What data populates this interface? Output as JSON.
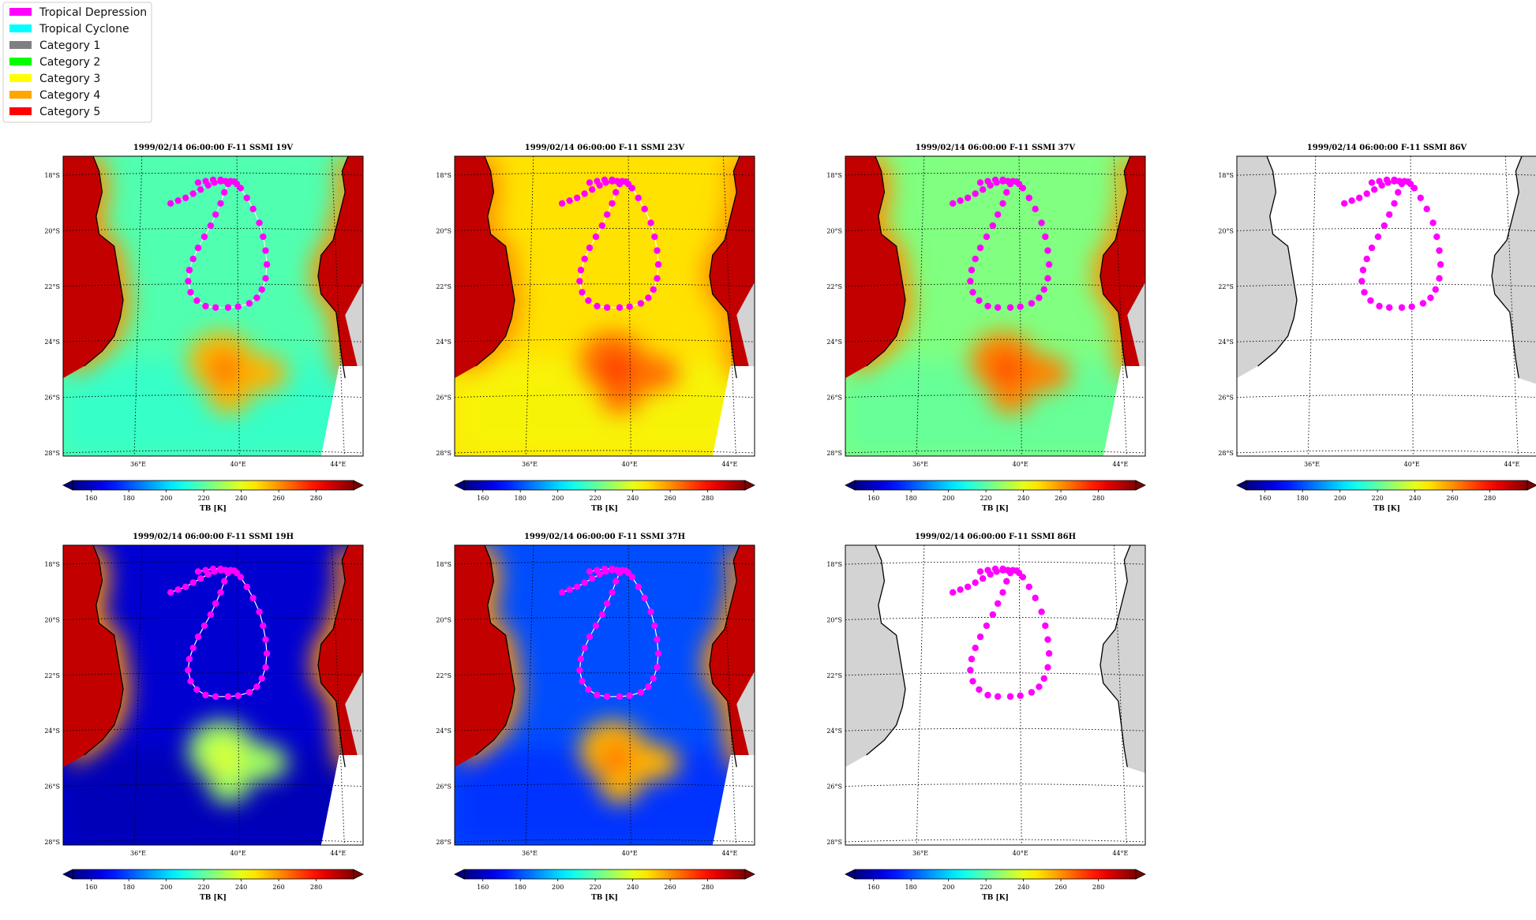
{
  "legend": {
    "position": "top-left",
    "items": [
      {
        "label": "Tropical Depression",
        "color": "#ff00ff"
      },
      {
        "label": "Tropical Cyclone",
        "color": "#00ffff"
      },
      {
        "label": "Category 1",
        "color": "#808080"
      },
      {
        "label": "Category 2",
        "color": "#00ff00"
      },
      {
        "label": "Category 3",
        "color": "#ffff00"
      },
      {
        "label": "Category 4",
        "color": "#ffa500"
      },
      {
        "label": "Category 5",
        "color": "#ff0000"
      }
    ]
  },
  "colorbar": {
    "label": "TB [K]",
    "ticks": [
      "160",
      "180",
      "200",
      "220",
      "240",
      "260",
      "280"
    ],
    "range": [
      150,
      300
    ],
    "colormap": "jet",
    "extend": "both"
  },
  "map": {
    "lat_ticks": [
      "18°S",
      "20°S",
      "22°S",
      "24°S",
      "26°S",
      "28°S"
    ],
    "lon_ticks": [
      "36°E",
      "40°E",
      "44°E"
    ],
    "land_color": "#d3d3d3",
    "track_color": "#ff00ff"
  },
  "chart_data": [
    {
      "type": "heatmap",
      "title": "1999/02/14 06:00:00  F-11 SSMI 19V",
      "channel": "19V",
      "ocean_tb": 218,
      "land_tb": 290,
      "storm_tb": 255,
      "track_line": true
    },
    {
      "type": "heatmap",
      "title": "1999/02/14 06:00:00  F-11 SSMI 23V",
      "channel": "23V",
      "ocean_tb": 248,
      "land_tb": 290,
      "storm_tb": 265,
      "track_line": true
    },
    {
      "type": "heatmap",
      "title": "1999/02/14 06:00:00  F-11 SSMI 37V",
      "channel": "37V",
      "ocean_tb": 225,
      "land_tb": 290,
      "storm_tb": 262,
      "track_line": false
    },
    {
      "type": "heatmap",
      "title": "1999/02/14 06:00:00  F-11 SSMI 86V",
      "channel": "86V",
      "ocean_tb": null,
      "land_tb": null,
      "storm_tb": null,
      "track_line": false
    },
    {
      "type": "heatmap",
      "title": "1999/02/14 06:00:00  F-11 SSMI 19H",
      "channel": "19H",
      "ocean_tb": 162,
      "land_tb": 290,
      "storm_tb": 230,
      "track_line": true
    },
    {
      "type": "heatmap",
      "title": "1999/02/14 06:00:00  F-11 SSMI 37H",
      "channel": "37H",
      "ocean_tb": 180,
      "land_tb": 290,
      "storm_tb": 255,
      "track_line": true
    },
    {
      "type": "heatmap",
      "title": "1999/02/14 06:00:00  F-11 SSMI 86H",
      "channel": "86H",
      "ocean_tb": null,
      "land_tb": null,
      "storm_tb": null,
      "track_line": false
    }
  ],
  "track": {
    "lon": [
      37.3,
      37.6,
      37.9,
      38.2,
      38.5,
      38.8,
      39.05,
      39.3,
      39.5,
      39.7,
      39.85,
      39.95,
      40.1,
      40.35,
      40.6,
      40.85,
      41.0,
      41.1,
      41.15,
      41.1,
      40.95,
      40.75,
      40.45,
      40.0,
      39.6,
      39.1,
      38.7,
      38.35,
      38.1,
      38.0,
      38.05,
      38.2,
      38.4,
      38.65,
      38.9,
      39.1,
      39.3,
      39.45,
      39.6,
      39.5,
      39.3,
      39.0,
      38.7,
      38.4
    ],
    "lat": [
      -19.1,
      -19.0,
      -18.9,
      -18.75,
      -18.6,
      -18.45,
      -18.35,
      -18.3,
      -18.3,
      -18.3,
      -18.32,
      -18.4,
      -18.55,
      -18.9,
      -19.3,
      -19.8,
      -20.3,
      -20.8,
      -21.3,
      -21.8,
      -22.2,
      -22.5,
      -22.7,
      -22.82,
      -22.85,
      -22.85,
      -22.8,
      -22.6,
      -22.3,
      -21.9,
      -21.5,
      -21.1,
      -20.7,
      -20.3,
      -19.9,
      -19.5,
      -19.1,
      -18.7,
      -18.4,
      -18.3,
      -18.25,
      -18.25,
      -18.3,
      -18.35
    ]
  }
}
